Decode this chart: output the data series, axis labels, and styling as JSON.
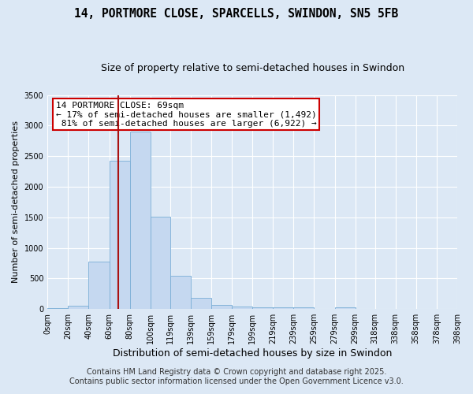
{
  "title": "14, PORTMORE CLOSE, SPARCELLS, SWINDON, SN5 5FB",
  "subtitle": "Size of property relative to semi-detached houses in Swindon",
  "xlabel": "Distribution of semi-detached houses by size in Swindon",
  "ylabel": "Number of semi-detached properties",
  "bar_color": "#c5d8f0",
  "bar_edge_color": "#7aaed6",
  "background_color": "#dce8f5",
  "grid_color": "#ffffff",
  "red_line_x": 69,
  "red_line_color": "#aa1111",
  "annotation_text": "14 PORTMORE CLOSE: 69sqm\n← 17% of semi-detached houses are smaller (1,492)\n 81% of semi-detached houses are larger (6,922) →",
  "annotation_box_color": "#ffffff",
  "annotation_box_edge_color": "#cc0000",
  "bin_edges": [
    0,
    20,
    40,
    60,
    80,
    100,
    119,
    139,
    159,
    179,
    199,
    219,
    239,
    259,
    279,
    299,
    318,
    338,
    358,
    378,
    398
  ],
  "bar_heights": [
    20,
    50,
    770,
    2420,
    2900,
    1510,
    545,
    185,
    65,
    35,
    25,
    25,
    25,
    0,
    25,
    0,
    0,
    0,
    0,
    0
  ],
  "ylim": [
    0,
    3500
  ],
  "yticks": [
    0,
    500,
    1000,
    1500,
    2000,
    2500,
    3000,
    3500
  ],
  "footer_line1": "Contains HM Land Registry data © Crown copyright and database right 2025.",
  "footer_line2": "Contains public sector information licensed under the Open Government Licence v3.0.",
  "title_fontsize": 10.5,
  "subtitle_fontsize": 9,
  "xlabel_fontsize": 9,
  "ylabel_fontsize": 8,
  "tick_fontsize": 7,
  "annotation_fontsize": 8,
  "footer_fontsize": 7
}
